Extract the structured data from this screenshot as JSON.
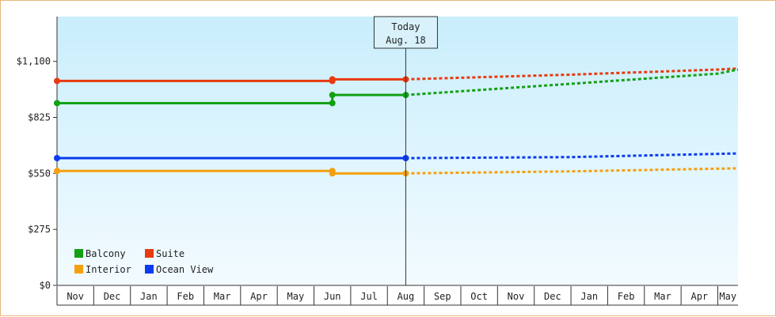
{
  "chart_data": {
    "type": "line",
    "x_categories": [
      "Nov",
      "Dec",
      "Jan",
      "Feb",
      "Mar",
      "Apr",
      "May",
      "Jun",
      "Jul",
      "Aug",
      "Sep",
      "Oct",
      "Nov",
      "Dec",
      "Jan",
      "Feb",
      "Mar",
      "Apr",
      "May"
    ],
    "y_ticks": [
      "$0",
      "$275",
      "$550",
      "$825",
      "$1,100"
    ],
    "ylim": [
      0,
      1320
    ],
    "today_label": "Today",
    "today_date": "Aug. 18",
    "today_index": 9.5,
    "grid": false,
    "legend_position": "bottom-left",
    "series": [
      {
        "name": "Suite",
        "color": "#e83a10",
        "history": [
          [
            0,
            1004
          ],
          [
            7.5,
            1004
          ],
          [
            7.5,
            1012
          ],
          [
            9.5,
            1012
          ]
        ],
        "forecast": [
          [
            9.5,
            1012
          ],
          [
            14,
            1035
          ],
          [
            18,
            1060
          ],
          [
            19,
            1065
          ]
        ]
      },
      {
        "name": "Balcony",
        "color": "#13a013",
        "history": [
          [
            0,
            895
          ],
          [
            7.5,
            895
          ],
          [
            7.5,
            935
          ],
          [
            9.5,
            935
          ]
        ],
        "forecast": [
          [
            9.5,
            935
          ],
          [
            14,
            990
          ],
          [
            18,
            1040
          ],
          [
            19,
            1060
          ]
        ]
      },
      {
        "name": "Ocean View",
        "color": "#0a3cf0",
        "history": [
          [
            0,
            625
          ],
          [
            9.5,
            625
          ]
        ],
        "forecast": [
          [
            9.5,
            625
          ],
          [
            14,
            630
          ],
          [
            19,
            648
          ]
        ]
      },
      {
        "name": "Interior",
        "color": "#f5a010",
        "history": [
          [
            0,
            562
          ],
          [
            7.5,
            562
          ],
          [
            7.5,
            550
          ],
          [
            9.5,
            550
          ]
        ],
        "forecast": [
          [
            9.5,
            550
          ],
          [
            14,
            560
          ],
          [
            19,
            575
          ]
        ]
      }
    ],
    "legend": [
      {
        "name": "Balcony",
        "color": "#13a013"
      },
      {
        "name": "Suite",
        "color": "#e83a10"
      },
      {
        "name": "Interior",
        "color": "#f5a010"
      },
      {
        "name": "Ocean View",
        "color": "#0a3cf0"
      }
    ]
  }
}
